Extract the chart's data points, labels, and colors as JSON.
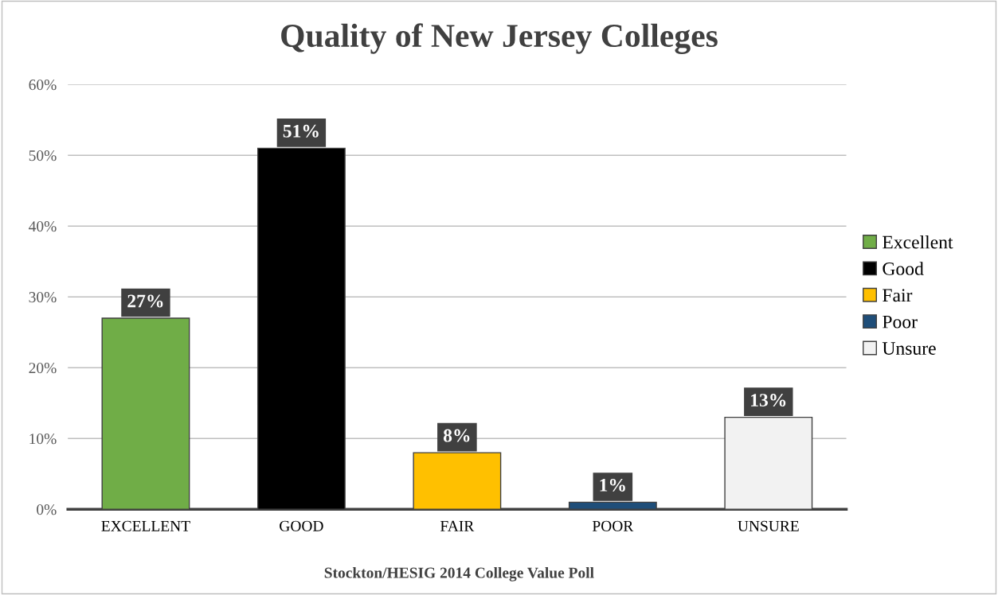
{
  "chart_data": {
    "type": "bar",
    "title": "Quality of New Jersey Colleges",
    "categories": [
      "EXCELLENT",
      "GOOD",
      "FAIR",
      "POOR",
      "UNSURE"
    ],
    "series": [
      {
        "name": "Excellent",
        "color": "#70ad47",
        "values": [
          27,
          null,
          null,
          null,
          null
        ],
        "value_labels": [
          "27%",
          null,
          null,
          null,
          null
        ]
      },
      {
        "name": "Good",
        "color": "#000000",
        "values": [
          null,
          51,
          null,
          null,
          null
        ],
        "value_labels": [
          null,
          "51%",
          null,
          null,
          null
        ]
      },
      {
        "name": "Fair",
        "color": "#ffc000",
        "values": [
          null,
          null,
          8,
          null,
          null
        ],
        "value_labels": [
          null,
          null,
          "8%",
          null,
          null
        ]
      },
      {
        "name": "Poor",
        "color": "#1f4e79",
        "values": [
          null,
          null,
          null,
          1,
          null
        ],
        "value_labels": [
          null,
          null,
          null,
          "1%",
          null
        ]
      },
      {
        "name": "Unsure",
        "color": "#f2f2f2",
        "values": [
          null,
          null,
          null,
          null,
          13
        ],
        "value_labels": [
          null,
          null,
          null,
          null,
          "13%"
        ]
      }
    ],
    "ylim": [
      0,
      60
    ],
    "yticks": [
      {
        "value": 0,
        "label": "0%"
      },
      {
        "value": 10,
        "label": "10%"
      },
      {
        "value": 20,
        "label": "20%"
      },
      {
        "value": 30,
        "label": "30%"
      },
      {
        "value": 40,
        "label": "40%"
      },
      {
        "value": 50,
        "label": "50%"
      },
      {
        "value": 60,
        "label": "60%"
      }
    ],
    "grid": "y",
    "legend": "right",
    "annotations": [
      "Stockton/HESIG 2014 College Value Poll"
    ]
  }
}
